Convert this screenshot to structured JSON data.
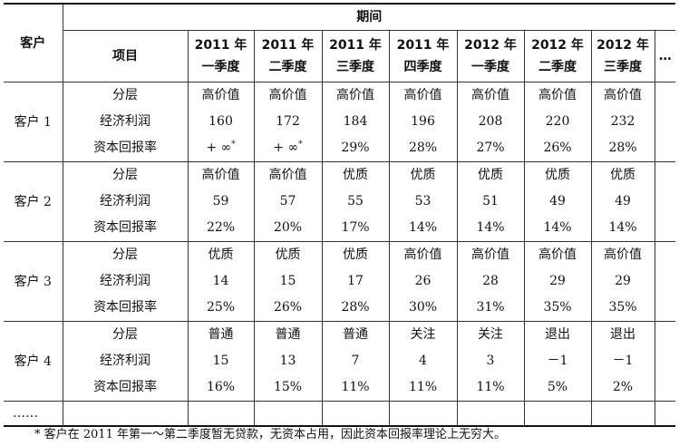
{
  "header": {
    "customer_label": "客户",
    "period_label": "期间",
    "item_label": "项目",
    "more_label": "…",
    "quarters": [
      {
        "year": "2011 年",
        "quarter": "一季度"
      },
      {
        "year": "2011 年",
        "quarter": "二季度"
      },
      {
        "year": "2011 年",
        "quarter": "三季度"
      },
      {
        "year": "2011 年",
        "quarter": "四季度"
      },
      {
        "year": "2012 年",
        "quarter": "一季度"
      },
      {
        "year": "2012 年",
        "quarter": "二季度"
      },
      {
        "year": "2012 年",
        "quarter": "三季度"
      }
    ]
  },
  "item_names": {
    "tier": "分层",
    "profit": "经济利润",
    "roc": "资本回报率"
  },
  "customers": [
    {
      "name": "客户 1",
      "tier": [
        "高价值",
        "高价值",
        "高价值",
        "高价值",
        "高价值",
        "高价值",
        "高价值"
      ],
      "profit": [
        "160",
        "172",
        "184",
        "196",
        "208",
        "220",
        "232"
      ],
      "roc": [
        "+ ∞",
        "+ ∞",
        "29%",
        "28%",
        "27%",
        "26%",
        "28%"
      ],
      "roc_marks": [
        "*",
        "*",
        "",
        "",
        "",
        "",
        ""
      ]
    },
    {
      "name": "客户 2",
      "tier": [
        "高价值",
        "高价值",
        "优质",
        "优质",
        "优质",
        "优质",
        "优质"
      ],
      "profit": [
        "59",
        "57",
        "55",
        "53",
        "51",
        "49",
        "49"
      ],
      "roc": [
        "22%",
        "20%",
        "17%",
        "14%",
        "14%",
        "14%",
        "14%"
      ],
      "roc_marks": [
        "",
        "",
        "",
        "",
        "",
        "",
        ""
      ]
    },
    {
      "name": "客户 3",
      "tier": [
        "优质",
        "优质",
        "优质",
        "高价值",
        "高价值",
        "高价值",
        "高价值"
      ],
      "profit": [
        "14",
        "15",
        "17",
        "26",
        "28",
        "29",
        "29"
      ],
      "roc": [
        "25%",
        "26%",
        "28%",
        "30%",
        "31%",
        "35%",
        "35%"
      ],
      "roc_marks": [
        "",
        "",
        "",
        "",
        "",
        "",
        ""
      ]
    },
    {
      "name": "客户 4",
      "tier": [
        "普通",
        "普通",
        "普通",
        "关注",
        "关注",
        "退出",
        "退出"
      ],
      "profit": [
        "15",
        "13",
        "7",
        "4",
        "3",
        "－1",
        "－1"
      ],
      "roc": [
        "16%",
        "15%",
        "11%",
        "11%",
        "11%",
        "5%",
        "2%"
      ],
      "roc_marks": [
        "",
        "",
        "",
        "",
        "",
        "",
        ""
      ]
    }
  ],
  "more_rows_label": "……",
  "footnote": "* 客户在 2011 年第一～第二季度暂无贷款，无资本占用，因此资本回报率理论上无穷大。"
}
